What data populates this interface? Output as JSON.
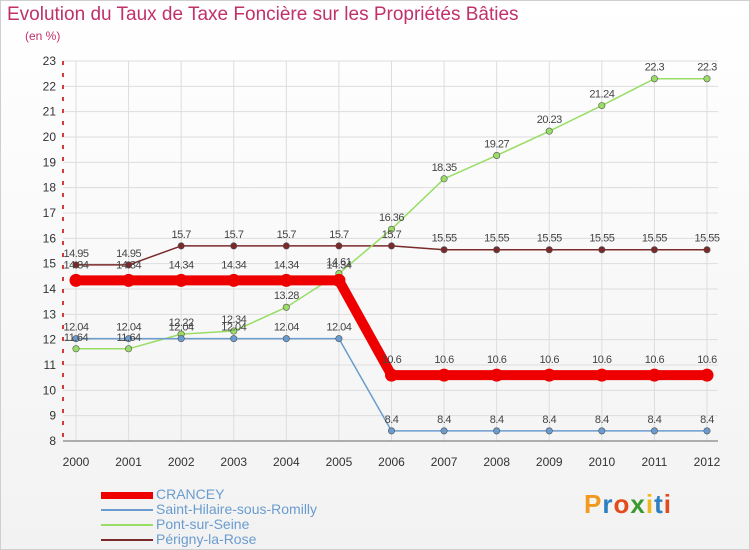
{
  "title": "Evolution du Taux de Taxe Foncière sur les Propriétés Bâties",
  "unit": "(en %)",
  "logo": {
    "text": "Proxiti",
    "letters": [
      "P",
      "r",
      "o",
      "x",
      "i",
      "t",
      "i"
    ],
    "colors": [
      "#f29a1f",
      "#2d7fc0",
      "#e34a1c",
      "#3a9a2f",
      "#f0b81a",
      "#2d7fc0",
      "#e34a1c"
    ]
  },
  "chart_data": {
    "type": "line",
    "title": "Evolution du Taux de Taxe Foncière sur les Propriétés Bâties",
    "ylabel": "(en %)",
    "xlabel": "",
    "x": [
      "2000",
      "2001",
      "2002",
      "2003",
      "2004",
      "2005",
      "2006",
      "2007",
      "2008",
      "2009",
      "2010",
      "2011",
      "2012"
    ],
    "ylim": [
      8,
      23
    ],
    "yticks": [
      "8",
      "9",
      "10",
      "11",
      "12",
      "13",
      "14",
      "15",
      "16",
      "17",
      "18",
      "19",
      "20",
      "21",
      "22",
      "23"
    ],
    "legend_position": "bottom-left",
    "series": [
      {
        "name": "CRANCEY",
        "color": "#ee0000",
        "values": [
          14.34,
          14.34,
          14.34,
          14.34,
          14.34,
          14.34,
          10.6,
          10.6,
          10.6,
          10.6,
          10.6,
          10.6,
          10.6
        ],
        "labels": [
          "14.34",
          "14.34",
          "14.34",
          "14.34",
          "14.34",
          "14.34",
          "10.6",
          "10.6",
          "10.6",
          "10.6",
          "10.6",
          "10.6",
          "10.6"
        ]
      },
      {
        "name": "Saint-Hilaire-sous-Romilly",
        "color": "#6a9ccf",
        "values": [
          12.04,
          12.04,
          12.04,
          12.04,
          12.04,
          12.04,
          8.4,
          8.4,
          8.4,
          8.4,
          8.4,
          8.4,
          8.4
        ],
        "labels": [
          "12.04",
          "12.04",
          "12.04",
          "12.04",
          "12.04",
          "12.04",
          "8.4",
          "8.4",
          "8.4",
          "8.4",
          "8.4",
          "8.4",
          "8.4"
        ]
      },
      {
        "name": "Pont-sur-Seine",
        "color": "#99dd66",
        "values": [
          11.64,
          11.64,
          12.22,
          12.34,
          13.28,
          14.61,
          16.36,
          18.35,
          19.27,
          20.23,
          21.24,
          22.3,
          22.3
        ],
        "labels": [
          "11.64",
          "11.64",
          "12.22",
          "12.34",
          "13.28",
          "14.61",
          "16.36",
          "18.35",
          "19.27",
          "20.23",
          "21.24",
          "22.3",
          "22.3"
        ]
      },
      {
        "name": "Périgny-la-Rose",
        "color": "#7a2a2a",
        "values": [
          14.95,
          14.95,
          15.7,
          15.7,
          15.7,
          15.7,
          15.7,
          15.55,
          15.55,
          15.55,
          15.55,
          15.55,
          15.55
        ],
        "labels": [
          "14.95",
          "14.95",
          "15.7",
          "15.7",
          "15.7",
          "15.7",
          "15.7",
          "15.55",
          "15.55",
          "15.55",
          "15.55",
          "15.55",
          "15.55"
        ]
      }
    ]
  }
}
